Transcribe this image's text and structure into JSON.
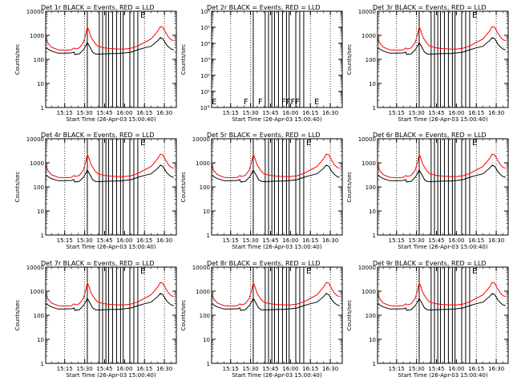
{
  "chart_data": [
    {
      "type": "line",
      "title": "Det 1r BLACK = Events, RED = LLD",
      "xlabel": "Start Time (26-Apr-03 15:00:40)",
      "ylabel": "Counts/sec",
      "ylim": [
        1,
        10000
      ],
      "yscale": "log",
      "x_ticks": [
        "15:15",
        "15:30",
        "15:45",
        "16:00",
        "16:15",
        "16:30"
      ],
      "y_ticks": [
        "1",
        "10",
        "100",
        "1000",
        "10000"
      ],
      "has_data": true,
      "flags": [
        "E"
      ],
      "series": [
        {
          "name": "Events",
          "color": "#000000"
        },
        {
          "name": "LLD",
          "color": "#ff0000"
        }
      ]
    },
    {
      "type": "line",
      "title": "Det 2r BLACK = Events, RED = LLD",
      "xlabel": "Start Time (26-Apr-03 15:00:40)",
      "ylabel": "Counts/sec",
      "ylim": [
        1,
        1000000
      ],
      "yscale": "log",
      "x_ticks": [
        "15:15",
        "15:30",
        "15:45",
        "16:00",
        "16:15",
        "16:30"
      ],
      "y_ticks": [
        "10°",
        "10¹",
        "10²",
        "10³",
        "10⁴",
        "10⁵",
        "10⁶"
      ],
      "has_data": false,
      "flags": [
        "E",
        "F",
        "F",
        "FFFF",
        "E"
      ],
      "series": []
    },
    {
      "type": "line",
      "title": "Det 3r BLACK = Events, RED = LLD",
      "xlabel": "Start Time (26-Apr-03 15:00:40)",
      "ylabel": "Counts/sec",
      "ylim": [
        1,
        10000
      ],
      "yscale": "log",
      "x_ticks": [
        "15:15",
        "15:30",
        "15:45",
        "16:00",
        "16:15",
        "16:30"
      ],
      "y_ticks": [
        "1",
        "10",
        "100",
        "1000",
        "10000"
      ],
      "has_data": true,
      "flags": [
        "E"
      ],
      "series": [
        {
          "name": "Events",
          "color": "#000000"
        },
        {
          "name": "LLD",
          "color": "#ff0000"
        }
      ]
    },
    {
      "type": "line",
      "title": "Det 4r BLACK = Events, RED = LLD",
      "xlabel": "Start Time (26-Apr-03 15:00:40)",
      "ylabel": "Counts/sec",
      "ylim": [
        1,
        10000
      ],
      "yscale": "log",
      "x_ticks": [
        "15:15",
        "15:30",
        "15:45",
        "16:00",
        "16:15",
        "16:30"
      ],
      "y_ticks": [
        "1",
        "10",
        "100",
        "1000",
        "10000"
      ],
      "has_data": true,
      "flags": [
        "E"
      ],
      "series": [
        {
          "name": "Events",
          "color": "#000000"
        },
        {
          "name": "LLD",
          "color": "#ff0000"
        }
      ]
    },
    {
      "type": "line",
      "title": "Det 5r BLACK = Events, RED = LLD",
      "xlabel": "Start Time (26-Apr-03 15:00:40)",
      "ylabel": "Counts/sec",
      "ylim": [
        1,
        10000
      ],
      "yscale": "log",
      "x_ticks": [
        "15:15",
        "15:30",
        "15:45",
        "16:00",
        "16:15",
        "16:30"
      ],
      "y_ticks": [
        "1",
        "10",
        "100",
        "1000",
        "10000"
      ],
      "has_data": true,
      "flags": [
        "E"
      ],
      "series": [
        {
          "name": "Events",
          "color": "#000000"
        },
        {
          "name": "LLD",
          "color": "#ff0000"
        }
      ]
    },
    {
      "type": "line",
      "title": "Det 6r BLACK = Events, RED = LLD",
      "xlabel": "Start Time (26-Apr-03 15:00:40)",
      "ylabel": "Counts/sec",
      "ylim": [
        1,
        10000
      ],
      "yscale": "log",
      "x_ticks": [
        "15:15",
        "15:30",
        "15:45",
        "16:00",
        "16:15",
        "16:30"
      ],
      "y_ticks": [
        "1",
        "10",
        "100",
        "1000",
        "10000"
      ],
      "has_data": true,
      "flags": [
        "E"
      ],
      "series": [
        {
          "name": "Events",
          "color": "#000000"
        },
        {
          "name": "LLD",
          "color": "#ff0000"
        }
      ]
    },
    {
      "type": "line",
      "title": "Det 7r BLACK = Events, RED = LLD",
      "xlabel": "Start Time (26-Apr-03 15:00:40)",
      "ylabel": "Counts/sec",
      "ylim": [
        1,
        10000
      ],
      "yscale": "log",
      "x_ticks": [
        "15:15",
        "15:30",
        "15:45",
        "16:00",
        "16:15",
        "16:30"
      ],
      "y_ticks": [
        "1",
        "10",
        "100",
        "1000",
        "10000"
      ],
      "has_data": true,
      "flags": [
        "E"
      ],
      "series": [
        {
          "name": "Events",
          "color": "#000000"
        },
        {
          "name": "LLD",
          "color": "#ff0000"
        }
      ]
    },
    {
      "type": "line",
      "title": "Det 8r BLACK = Events, RED = LLD",
      "xlabel": "Start Time (26-Apr-03 15:00:40)",
      "ylabel": "Counts/sec",
      "ylim": [
        1,
        10000
      ],
      "yscale": "log",
      "x_ticks": [
        "15:15",
        "15:30",
        "15:45",
        "16:00",
        "16:15",
        "16:30"
      ],
      "y_ticks": [
        "1",
        "10",
        "100",
        "1000",
        "10000"
      ],
      "has_data": true,
      "flags": [
        "E"
      ],
      "series": [
        {
          "name": "Events",
          "color": "#000000"
        },
        {
          "name": "LLD",
          "color": "#ff0000"
        }
      ]
    },
    {
      "type": "line",
      "title": "Det 9r BLACK = Events, RED = LLD",
      "xlabel": "Start Time (26-Apr-03 15:00:40)",
      "ylabel": "Counts/sec",
      "ylim": [
        1,
        10000
      ],
      "yscale": "log",
      "x_ticks": [
        "15:15",
        "15:30",
        "15:45",
        "16:00",
        "16:15",
        "16:30"
      ],
      "y_ticks": [
        "1",
        "10",
        "100",
        "1000",
        "10000"
      ],
      "has_data": true,
      "flags": [
        "E"
      ],
      "series": [
        {
          "name": "Events",
          "color": "#000000"
        },
        {
          "name": "LLD",
          "color": "#ff0000"
        }
      ]
    }
  ],
  "x_range": [
    "15:00:40",
    "16:39:00"
  ],
  "x_tick_times": [
    "15:15:00",
    "15:30:00",
    "15:45:00",
    "16:00:00",
    "16:15:00",
    "16:30:00"
  ],
  "dotted_line_times": [
    "15:15:00",
    "15:30:00",
    "16:15:00",
    "16:30:00"
  ],
  "solid_line_times": [
    "15:32:00",
    "15:41:00",
    "15:43:30",
    "15:46:00",
    "15:48:00",
    "15:51:00",
    "15:54:00",
    "15:57:00",
    "15:59:00",
    "16:04:00",
    "16:07:00",
    "16:10:00"
  ],
  "events_profile": [
    [
      "15:00:40",
      300
    ],
    [
      "15:05:00",
      220
    ],
    [
      "15:10:00",
      180
    ],
    [
      "15:15:00",
      180
    ],
    [
      "15:20:00",
      185
    ],
    [
      "15:22:00",
      200
    ],
    [
      "15:22:30",
      160
    ],
    [
      "15:26:00",
      170
    ],
    [
      "15:29:00",
      250
    ],
    [
      "15:31:00",
      380
    ],
    [
      "15:32:00",
      500
    ],
    [
      "15:34:00",
      320
    ],
    [
      "15:36:00",
      200
    ],
    [
      "15:38:00",
      170
    ],
    [
      "15:40:00",
      165
    ],
    [
      "15:45:00",
      170
    ],
    [
      "15:50:00",
      175
    ],
    [
      "15:55:00",
      175
    ],
    [
      "15:58:00",
      180
    ],
    [
      "16:00:00",
      185
    ],
    [
      "16:05:00",
      200
    ],
    [
      "16:10:00",
      250
    ],
    [
      "16:15:00",
      300
    ],
    [
      "16:20:00",
      350
    ],
    [
      "16:25:00",
      600
    ],
    [
      "16:27:00",
      800
    ],
    [
      "16:29:00",
      700
    ],
    [
      "16:31:00",
      450
    ],
    [
      "16:33:00",
      330
    ],
    [
      "16:35:00",
      270
    ],
    [
      "16:37:00",
      250
    ]
  ],
  "lld_profile": [
    [
      "15:00:40",
      800
    ],
    [
      "15:02:00",
      500
    ],
    [
      "15:05:00",
      320
    ],
    [
      "15:10:00",
      250
    ],
    [
      "15:15:00",
      240
    ],
    [
      "15:20:00",
      250
    ],
    [
      "15:22:00",
      300
    ],
    [
      "15:23:00",
      270
    ],
    [
      "15:26:00",
      300
    ],
    [
      "15:29:00",
      500
    ],
    [
      "15:31:00",
      1200
    ],
    [
      "15:32:00",
      2200
    ],
    [
      "15:33:00",
      1700
    ],
    [
      "15:35:00",
      800
    ],
    [
      "15:38:00",
      450
    ],
    [
      "15:40:00",
      350
    ],
    [
      "15:45:00",
      300
    ],
    [
      "15:50:00",
      280
    ],
    [
      "15:55:00",
      270
    ],
    [
      "15:58:00",
      270
    ],
    [
      "16:00:00",
      270
    ],
    [
      "16:05:00",
      290
    ],
    [
      "16:10:00",
      360
    ],
    [
      "16:15:00",
      500
    ],
    [
      "16:20:00",
      700
    ],
    [
      "16:25:00",
      1500
    ],
    [
      "16:27:00",
      2300
    ],
    [
      "16:29:00",
      2100
    ],
    [
      "16:31:00",
      1300
    ],
    [
      "16:33:00",
      850
    ],
    [
      "16:35:00",
      650
    ],
    [
      "16:37:00",
      600
    ]
  ]
}
